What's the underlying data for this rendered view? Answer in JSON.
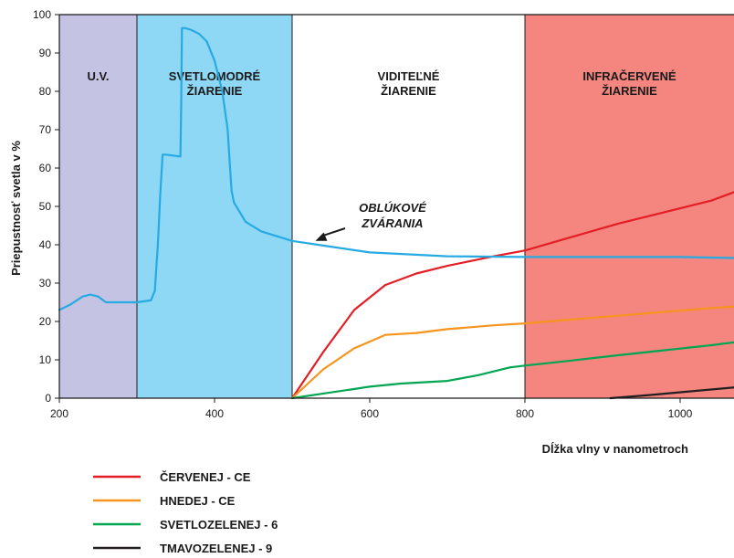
{
  "chart_data": {
    "type": "line",
    "xlabel": "Dĺžka vlny v nanometroch",
    "ylabel": "Priepustnosť svetla v %",
    "xlim": [
      200,
      1080
    ],
    "ylim": [
      0,
      100
    ],
    "x_ticks": [
      "200",
      "400",
      "600",
      "800",
      "1000"
    ],
    "x_tick_values": [
      200,
      400,
      600,
      800,
      1000
    ],
    "y_ticks": [
      "0",
      "10",
      "20",
      "30",
      "40",
      "50",
      "60",
      "70",
      "80",
      "90",
      "100"
    ],
    "y_tick_values": [
      0,
      10,
      20,
      30,
      40,
      50,
      60,
      70,
      80,
      90,
      100
    ],
    "regions": [
      {
        "lines": [
          "U.V."
        ],
        "from": 200,
        "to": 300,
        "color": "#c5c3e3"
      },
      {
        "lines": [
          "SVETLOMODRÉ",
          "ŽIARENIE"
        ],
        "from": 300,
        "to": 500,
        "color": "#8fd8f5"
      },
      {
        "lines": [
          "VIDITEĽNÉ",
          "ŽIARENIE"
        ],
        "from": 500,
        "to": 800,
        "color": "#ffffff"
      },
      {
        "lines": [
          "INFRAČERVENÉ",
          "ŽIARENIE"
        ],
        "from": 800,
        "to": 1080,
        "color": "#f4857f"
      }
    ],
    "annotation": {
      "lines": [
        "OBLÚKOVÉ",
        "ZVÁRANIA"
      ],
      "target_x": 530,
      "target_y": 41
    },
    "series": [
      {
        "name": "ČERVENEJ - CE",
        "color": "#e31e24",
        "points": [
          [
            500,
            0
          ],
          [
            540,
            12
          ],
          [
            580,
            23
          ],
          [
            620,
            29.5
          ],
          [
            660,
            32.5
          ],
          [
            700,
            34.5
          ],
          [
            760,
            37
          ],
          [
            800,
            38.5
          ],
          [
            860,
            42
          ],
          [
            920,
            45.5
          ],
          [
            980,
            48.5
          ],
          [
            1040,
            51.5
          ],
          [
            1080,
            54.5
          ]
        ]
      },
      {
        "name": "HNEDEJ - CE",
        "color": "#f7941d",
        "points": [
          [
            500,
            0
          ],
          [
            540,
            7.5
          ],
          [
            580,
            13
          ],
          [
            620,
            16.5
          ],
          [
            660,
            17
          ],
          [
            700,
            18
          ],
          [
            760,
            19
          ],
          [
            800,
            19.5
          ],
          [
            860,
            20.5
          ],
          [
            920,
            21.5
          ],
          [
            980,
            22.5
          ],
          [
            1040,
            23.5
          ],
          [
            1080,
            24
          ]
        ]
      },
      {
        "name": "SVETLOZELENEJ - 6",
        "color": "#00a651",
        "points": [
          [
            500,
            0
          ],
          [
            550,
            1.5
          ],
          [
            600,
            3
          ],
          [
            640,
            3.8
          ],
          [
            700,
            4.5
          ],
          [
            740,
            6
          ],
          [
            780,
            8
          ],
          [
            800,
            8.5
          ],
          [
            860,
            9.8
          ],
          [
            920,
            11.2
          ],
          [
            980,
            12.5
          ],
          [
            1040,
            13.8
          ],
          [
            1080,
            14.8
          ]
        ]
      },
      {
        "name": "TMAVOZELENEJ - 9",
        "color": "#231f20",
        "points": [
          [
            910,
            0
          ],
          [
            960,
            0.8
          ],
          [
            1020,
            1.9
          ],
          [
            1080,
            3
          ]
        ]
      },
      {
        "name": "OBLÚKOVÉ ZVÁRANIA",
        "color": "#27aae1",
        "points": [
          [
            200,
            23
          ],
          [
            215,
            24.5
          ],
          [
            230,
            26.5
          ],
          [
            240,
            27
          ],
          [
            250,
            26.5
          ],
          [
            260,
            25
          ],
          [
            280,
            25
          ],
          [
            300,
            25
          ],
          [
            318,
            25.5
          ],
          [
            323,
            28
          ],
          [
            327,
            40
          ],
          [
            330,
            53
          ],
          [
            333,
            63.5
          ],
          [
            337,
            63.5
          ],
          [
            356,
            63
          ],
          [
            357,
            75
          ],
          [
            358,
            96.5
          ],
          [
            362,
            96.5
          ],
          [
            370,
            96
          ],
          [
            380,
            95
          ],
          [
            390,
            93
          ],
          [
            400,
            88
          ],
          [
            410,
            80
          ],
          [
            417,
            70
          ],
          [
            420,
            60
          ],
          [
            422,
            54
          ],
          [
            425,
            51
          ],
          [
            440,
            46
          ],
          [
            460,
            43.5
          ],
          [
            500,
            41
          ],
          [
            550,
            39.5
          ],
          [
            600,
            38
          ],
          [
            700,
            37
          ],
          [
            800,
            36.8
          ],
          [
            900,
            36.8
          ],
          [
            1000,
            36.8
          ],
          [
            1080,
            36.5
          ]
        ]
      }
    ],
    "legend": {
      "placement": "bottom-left",
      "items": [
        {
          "label": "ČERVENEJ - CE",
          "color": "#e31e24"
        },
        {
          "label": "HNEDEJ - CE",
          "color": "#f7941d"
        },
        {
          "label": "SVETLOZELENEJ - 6",
          "color": "#00a651"
        },
        {
          "label": "TMAVOZELENEJ - 9",
          "color": "#231f20"
        }
      ]
    }
  }
}
